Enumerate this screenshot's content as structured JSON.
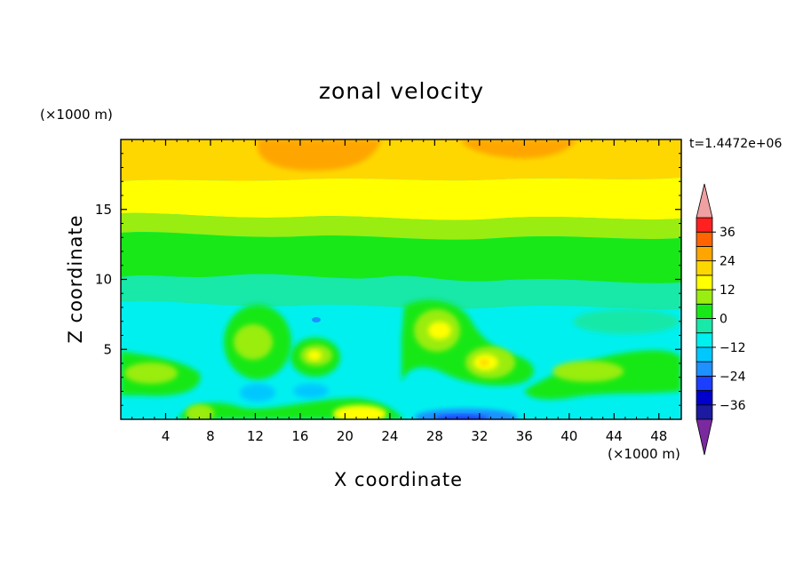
{
  "chart_data": {
    "type": "heatmap",
    "title": "zonal velocity",
    "xlabel": "X coordinate",
    "ylabel": "Z coordinate",
    "x_unit_label": "(×1000 m)",
    "y_unit_label": "(×1000 m)",
    "time_label": "t=1.4472e+06",
    "xlim": [
      0,
      50
    ],
    "ylim": [
      0,
      20
    ],
    "x_ticks": [
      "4",
      "8",
      "12",
      "16",
      "20",
      "24",
      "28",
      "32",
      "36",
      "40",
      "44",
      "48"
    ],
    "y_ticks": [
      "5",
      "10",
      "15"
    ],
    "colorbar": {
      "levels": [
        -42,
        -36,
        -30,
        -24,
        -18,
        -12,
        -6,
        0,
        6,
        12,
        18,
        24,
        30,
        36,
        42
      ],
      "tick_labels": [
        "36",
        "24",
        "12",
        "0",
        "−12",
        "−24",
        "−36"
      ],
      "colors": [
        "#7a2a9e",
        "#1b1aa0",
        "#0000cd",
        "#1c3fff",
        "#1e90ff",
        "#00c8ff",
        "#00f0f0",
        "#18e8a8",
        "#18e818",
        "#9aed10",
        "#ffff00",
        "#ffd700",
        "#ffa500",
        "#ff6400",
        "#ff2020",
        "#f0a0a0"
      ],
      "under_color": "#7a2a9e",
      "over_color": "#f0a0a0"
    },
    "field_description_bands": [
      {
        "z_range": [
          18,
          20
        ],
        "value": 20
      },
      {
        "z_range": [
          15,
          18
        ],
        "value": 14
      },
      {
        "z_range": [
          12,
          15
        ],
        "value": 6
      },
      {
        "z_range": [
          10,
          12
        ],
        "value": 2
      },
      {
        "z_range": [
          0,
          10
        ],
        "value": -6
      }
    ]
  }
}
